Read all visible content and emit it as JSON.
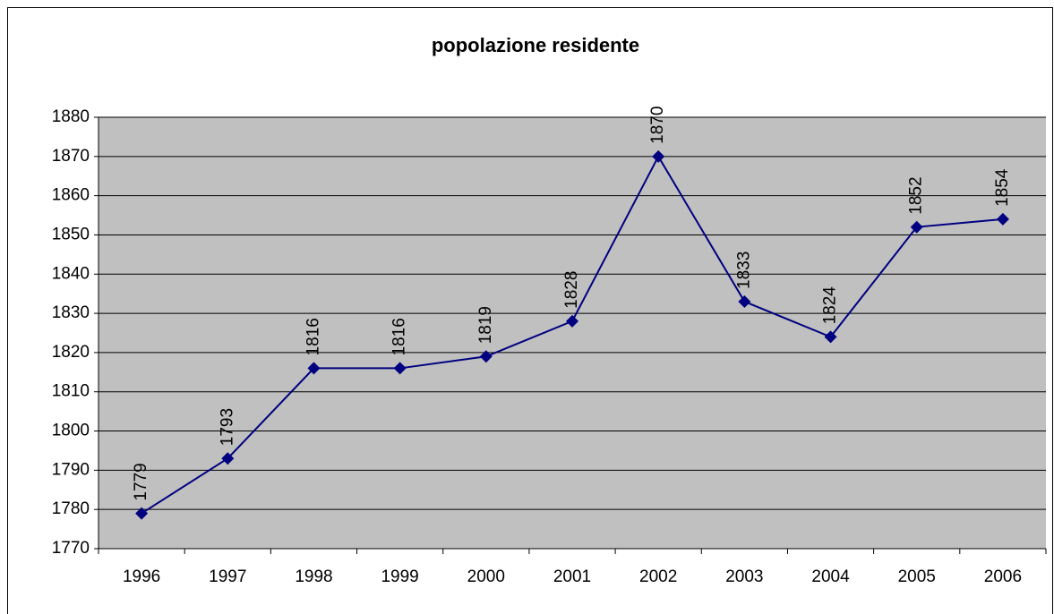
{
  "chart_data": {
    "type": "line",
    "title": "popolazione residente",
    "categories": [
      "1996",
      "1997",
      "1998",
      "1999",
      "2000",
      "2001",
      "2002",
      "2003",
      "2004",
      "2005",
      "2006"
    ],
    "values": [
      1779,
      1793,
      1816,
      1816,
      1819,
      1828,
      1870,
      1833,
      1824,
      1852,
      1854
    ],
    "color": "#000080",
    "ylim": [
      1770,
      1880
    ],
    "yticks": [
      1770,
      1780,
      1790,
      1800,
      1810,
      1820,
      1830,
      1840,
      1850,
      1860,
      1870,
      1880
    ],
    "grid": true
  }
}
